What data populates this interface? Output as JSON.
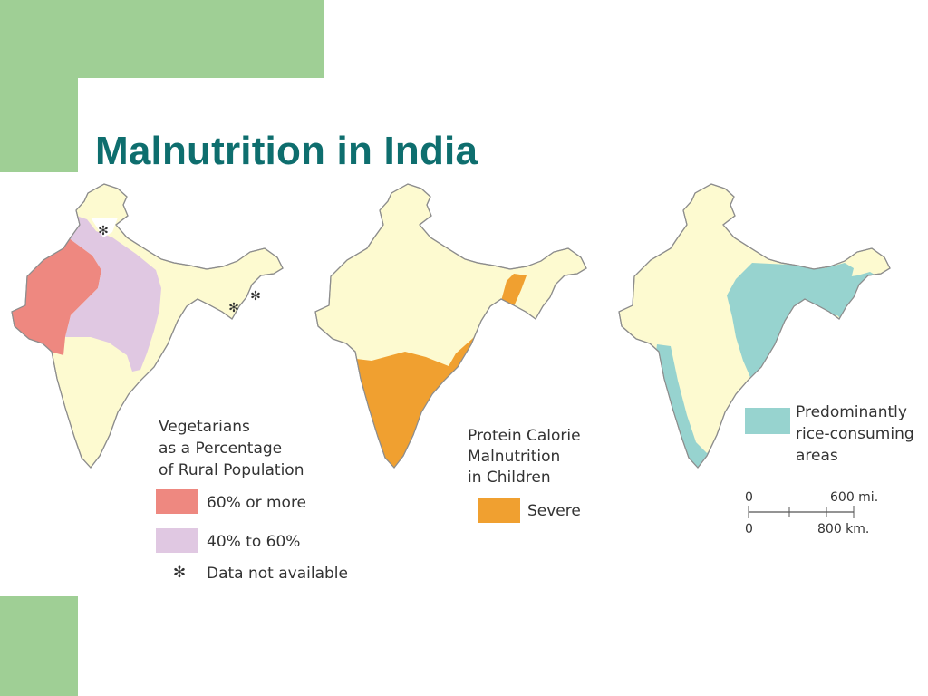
{
  "slide": {
    "title": "Malnutrition in India"
  },
  "colors": {
    "accent_green": "#9fcf95",
    "title_teal": "#0e6e6e",
    "land": "#fdfad0",
    "veg_60_plus": "#ee8880",
    "veg_40_60": "#e0c8e2",
    "severe": "#f0a030",
    "rice": "#97d3cf"
  },
  "maps": [
    {
      "name": "vegetarians-map",
      "legend": {
        "title_lines": [
          "Vegetarians",
          "as a Percentage",
          "of Rural Population"
        ],
        "items": [
          {
            "label": "60% or more",
            "color": "#ee8880"
          },
          {
            "label": "40% to 60%",
            "color": "#e0c8e2"
          }
        ],
        "note_symbol": "✻",
        "note_label": "Data not available"
      }
    },
    {
      "name": "malnutrition-map",
      "legend": {
        "title_lines": [
          "Protein Calorie",
          "Malnutrition",
          "in Children"
        ],
        "items": [
          {
            "label": "Severe",
            "color": "#f0a030"
          }
        ]
      }
    },
    {
      "name": "rice-map",
      "legend": {
        "title_lines": [
          "Predominantly",
          "rice-consuming",
          "areas"
        ],
        "items": [
          {
            "label": "",
            "color": "#97d3cf"
          }
        ]
      },
      "scale": {
        "mi_start": "0",
        "mi_end": "600 mi.",
        "km_start": "0",
        "km_end": "800 km."
      }
    }
  ]
}
